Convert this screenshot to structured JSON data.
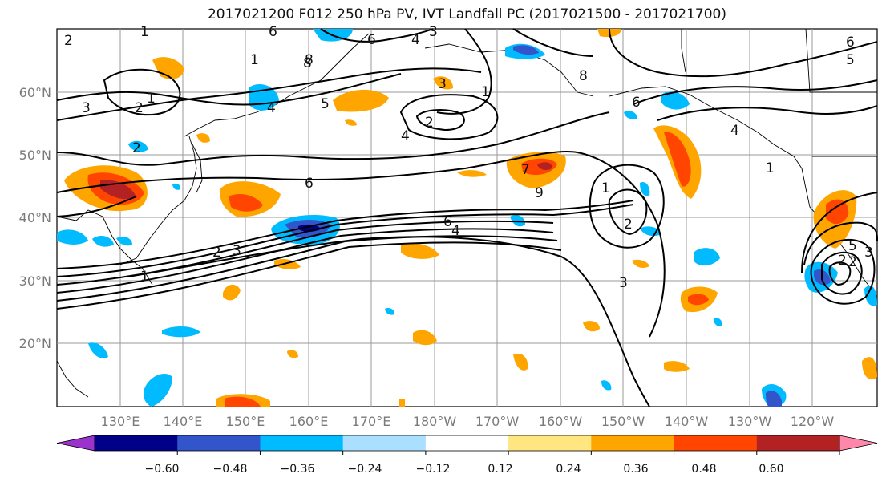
{
  "title": "2017021200 F012 250 hPa PV, IVT Landfall PC (2017021500 - 2017021700)",
  "map": {
    "lat_labels": [
      "60°N",
      "50°N",
      "40°N",
      "30°N",
      "20°N"
    ],
    "lon_labels": [
      "130°E",
      "140°E",
      "150°E",
      "160°E",
      "170°E",
      "180°W",
      "170°W",
      "160°W",
      "150°W",
      "140°W",
      "130°W",
      "120°W"
    ],
    "contour_labels": [
      "2",
      "1",
      "3",
      "2",
      "1",
      "6",
      "4",
      "5",
      "8",
      "3",
      "4",
      "2",
      "6",
      "1",
      "2",
      "3",
      "6",
      "4",
      "8",
      "6",
      "4",
      "6",
      "5",
      "1",
      "2",
      "6",
      "4",
      "3",
      "2",
      "1",
      "7",
      "9",
      "1",
      "2",
      "3",
      "1",
      "2",
      "3",
      "5",
      "8"
    ]
  },
  "colorbar": {
    "tick_labels": [
      "−0.60",
      "−0.48",
      "−0.36",
      "−0.24",
      "−0.12",
      "0.12",
      "0.24",
      "0.36",
      "0.48",
      "0.60"
    ],
    "colors": [
      "#9933cc",
      "#000088",
      "#3355cc",
      "#00bbff",
      "#aadfff",
      "#ffffff",
      "#ffe680",
      "#ffa500",
      "#ff4500",
      "#b22222",
      "#ff88aa"
    ]
  },
  "colors": {
    "positive_shading": "#ffa500",
    "negative_shading": "#00bbff",
    "contour": "#000000",
    "grid": "#999999"
  }
}
